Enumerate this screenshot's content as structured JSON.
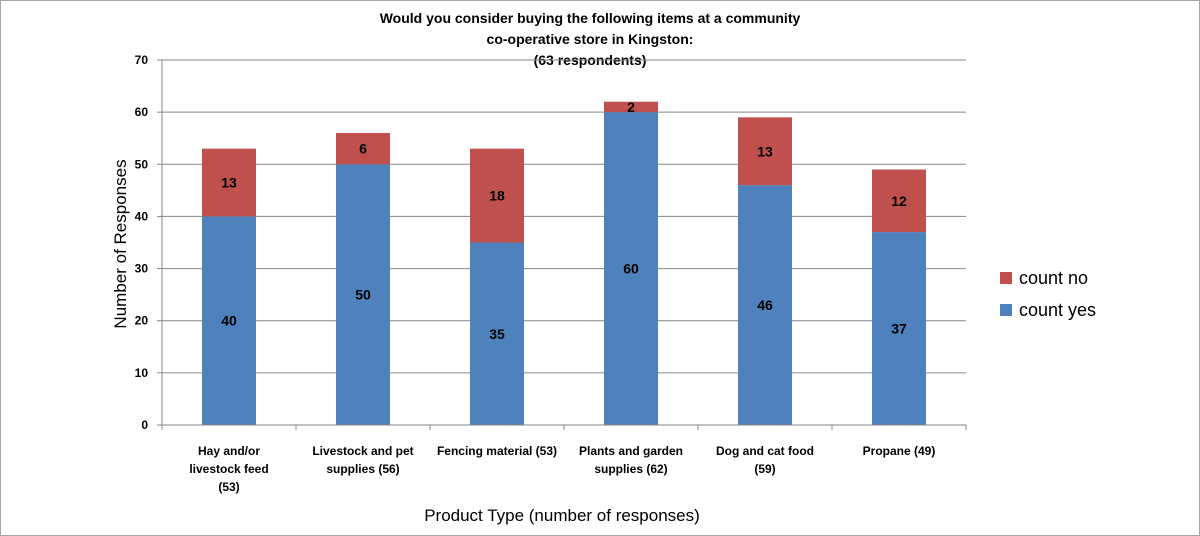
{
  "chart_data": {
    "type": "bar",
    "stacked": true,
    "title_lines": [
      "Would you consider buying the following items at a community",
      "co-operative store in Kingston:",
      "(63 respondents)"
    ],
    "xlabel": "Product Type (number of responses)",
    "ylabel": "Number of Responses",
    "ylim": [
      0,
      70
    ],
    "yticks": [
      0,
      10,
      20,
      30,
      40,
      50,
      60,
      70
    ],
    "grid": true,
    "legend_position": "right",
    "categories": [
      [
        "Hay and/or",
        "livestock feed",
        "(53)"
      ],
      [
        "Livestock and pet",
        "supplies (56)"
      ],
      [
        "Fencing material (53)"
      ],
      [
        "Plants and garden",
        "supplies (62)"
      ],
      [
        "Dog and cat food",
        "(59)"
      ],
      [
        "Propane (49)"
      ]
    ],
    "series": [
      {
        "name": "count yes",
        "color": "#4f81bd",
        "values": [
          40,
          50,
          35,
          60,
          46,
          37
        ]
      },
      {
        "name": "count no",
        "color": "#c0504d",
        "values": [
          13,
          6,
          18,
          2,
          13,
          12
        ]
      }
    ]
  }
}
